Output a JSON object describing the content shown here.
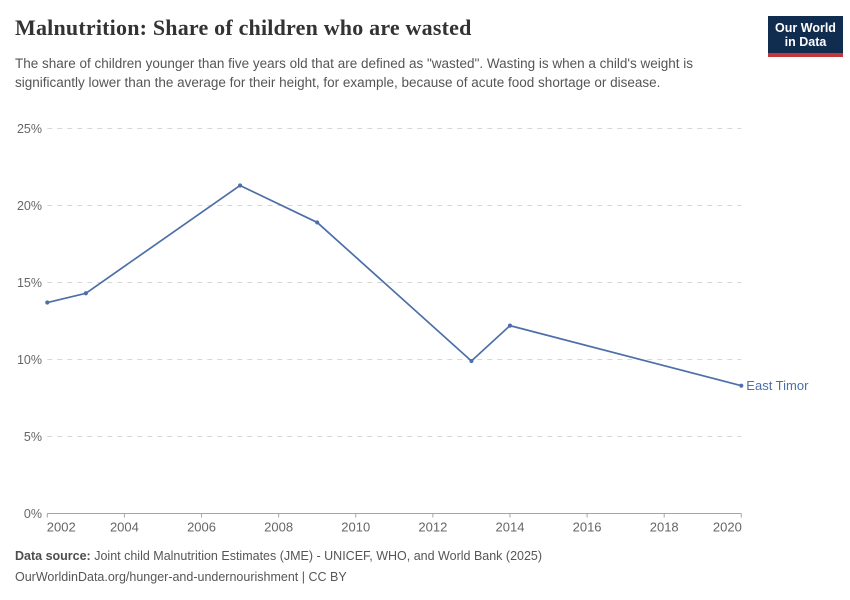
{
  "header": {
    "title": "Malnutrition: Share of children who are wasted",
    "subtitle": "The share of children younger than five years old that are defined as \"wasted\". Wasting is when a child's weight is significantly lower than the average for their height, for example, because of acute food shortage or disease.",
    "logo": {
      "line1": "Our World",
      "line2": "in Data",
      "bg_color": "#102d50",
      "accent_color": "#c5353e"
    }
  },
  "chart_data": {
    "type": "line",
    "title": "Malnutrition: Share of children who are wasted",
    "x": [
      2002,
      2003,
      2007,
      2009,
      2013,
      2014,
      2020
    ],
    "series": [
      {
        "name": "East Timor",
        "color": "#4d6fa8",
        "values": [
          13.7,
          14.3,
          21.3,
          18.9,
          9.9,
          12.2,
          8.3
        ]
      }
    ],
    "xlabel": "",
    "ylabel": "",
    "xlim": [
      2002,
      2020
    ],
    "ylim": [
      0,
      25
    ],
    "xticks": [
      2002,
      2004,
      2006,
      2008,
      2010,
      2012,
      2014,
      2016,
      2018,
      2020
    ],
    "yticks": [
      0,
      5,
      10,
      15,
      20,
      25
    ],
    "ytick_suffix": "%",
    "grid": "horizontal-dashed",
    "grid_color": "#d7d7d7",
    "axis_color": "#a5a5a5",
    "tick_label_color": "#666666",
    "legend": "line-end-label"
  },
  "footer": {
    "source_label": "Data source:",
    "source_text": "Joint child Malnutrition Estimates (JME) - UNICEF, WHO, and World Bank (2025)",
    "link_text": "OurWorldinData.org/hunger-and-undernourishment | CC BY"
  }
}
